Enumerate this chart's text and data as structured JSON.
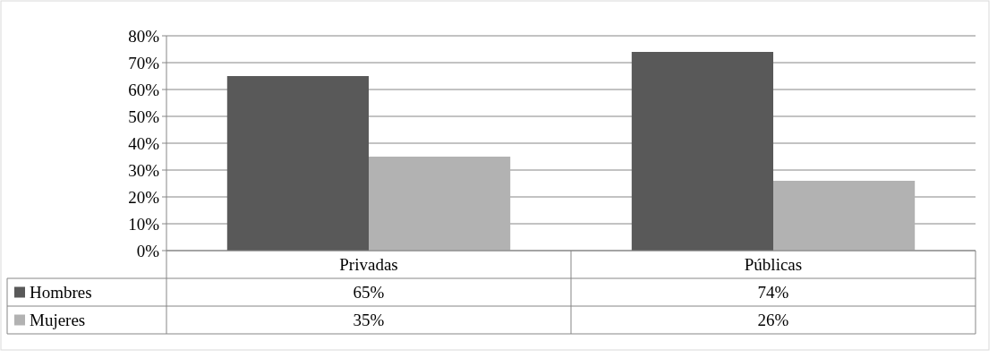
{
  "chart_data": {
    "type": "bar",
    "categories": [
      "Privadas",
      "Públicas"
    ],
    "series": [
      {
        "name": "Hombres",
        "color": "#595959",
        "values": [
          65,
          74
        ],
        "value_labels": [
          "65%",
          "74%"
        ]
      },
      {
        "name": "Mujeres",
        "color": "#b2b2b2",
        "values": [
          35,
          26
        ],
        "value_labels": [
          "35%",
          "26%"
        ]
      }
    ],
    "ylim": [
      0,
      80
    ],
    "yticks": [
      {
        "value": 0,
        "label": "0%"
      },
      {
        "value": 10,
        "label": "10%"
      },
      {
        "value": 20,
        "label": "20%"
      },
      {
        "value": 30,
        "label": "30%"
      },
      {
        "value": 40,
        "label": "40%"
      },
      {
        "value": 50,
        "label": "50%"
      },
      {
        "value": 60,
        "label": "60%"
      },
      {
        "value": 70,
        "label": "70%"
      },
      {
        "value": 80,
        "label": "80%"
      }
    ],
    "grid": "y",
    "legend": "bottom left"
  }
}
